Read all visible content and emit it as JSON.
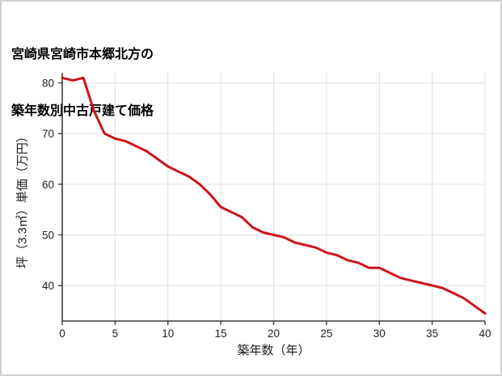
{
  "title": {
    "line1": "宮崎県宮崎市本郷北方の",
    "line2": "築年数別中古戸建て価格"
  },
  "chart_data": {
    "type": "line",
    "title": "宮崎県宮崎市本郷北方の築年数別中古戸建て価格",
    "xlabel": "築年数（年）",
    "ylabel": "坪（3.3㎡）単価（万円）",
    "x": [
      0,
      1,
      2,
      3,
      4,
      5,
      6,
      7,
      8,
      9,
      10,
      11,
      12,
      13,
      14,
      15,
      16,
      17,
      18,
      19,
      20,
      21,
      22,
      23,
      24,
      25,
      26,
      27,
      28,
      29,
      30,
      31,
      32,
      33,
      34,
      35,
      36,
      37,
      38,
      39,
      40
    ],
    "values": [
      81,
      80.5,
      81,
      74.5,
      70,
      69,
      68.5,
      67.5,
      66.5,
      65,
      63.5,
      62.5,
      61.5,
      60,
      58,
      55.5,
      54.5,
      53.5,
      51.5,
      50.5,
      50,
      49.5,
      48.5,
      48,
      47.5,
      46.5,
      46,
      45,
      44.5,
      43.5,
      43.5,
      42.5,
      41.5,
      41,
      40.5,
      40,
      39.5,
      38.5,
      37.5,
      36,
      34.5
    ],
    "xlim": [
      0,
      40
    ],
    "ylim": [
      33,
      82
    ],
    "x_ticks": [
      0,
      5,
      10,
      15,
      20,
      25,
      30,
      35,
      40
    ],
    "y_ticks": [
      40,
      50,
      60,
      70,
      80
    ],
    "grid": true,
    "legend_position": "none",
    "line_color": "#cc1418",
    "grid_color": "#e0e0e0",
    "axis_color": "#3c3c3c",
    "tick_text_color": "#222222"
  }
}
